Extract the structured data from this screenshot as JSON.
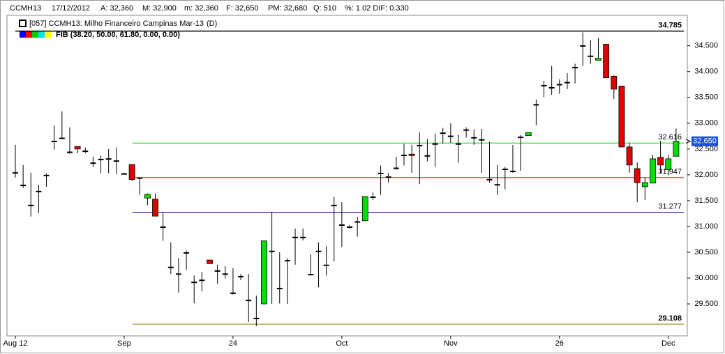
{
  "chart_data": {
    "type": "candlestick",
    "header": [
      "CCMH13",
      "17/12/2012",
      "A: 32,360",
      "M: 32,900",
      "m: 32,360",
      "F: 32,650",
      "PM: 32,680",
      "Q: 510",
      "%: 1.02 DIF: 0.330"
    ],
    "legend": [
      {
        "name": "[057] CCMH13: Milho Financeiro Campinas Mar-13",
        "period": "(D)"
      },
      {
        "name": "FIB (38.20, 50.00, 61.80, 0.00, 0.00)"
      }
    ],
    "open": [
      32.05,
      31.81,
      31.42,
      31.69,
      32.0,
      32.66,
      32.72,
      32.45,
      32.55,
      32.47,
      32.24,
      32.31,
      32.32,
      32.28,
      32.03,
      32.2,
      31.95,
      31.55,
      31.53,
      31.0,
      30.22,
      30.09,
      30.5,
      29.93,
      29.97,
      30.35,
      30.15,
      30.09,
      29.72,
      30.04,
      29.58,
      29.23,
      29.5,
      30.53,
      29.81,
      30.35,
      30.8,
      30.8,
      30.08,
      30.53,
      30.26,
      31.42,
      31.04,
      31.0,
      31.1,
      31.11,
      31.58,
      32.04,
      31.97,
      32.14,
      32.39,
      32.4,
      32.58,
      32.38,
      32.61,
      32.82,
      32.76,
      32.61,
      32.88,
      32.73,
      32.69,
      31.92,
      31.82,
      32.12,
      32.08,
      32.74,
      32.76,
      33.37,
      33.74,
      33.7,
      33.76,
      33.8,
      34.09,
      34.51,
      34.31,
      34.22,
      34.53,
      33.91,
      33.72,
      32.54,
      32.12,
      31.77,
      31.84,
      32.34,
      32.1,
      32.36
    ],
    "high": [
      32.58,
      32.19,
      32.04,
      31.81,
      32.03,
      32.96,
      33.23,
      32.92,
      32.55,
      32.53,
      32.35,
      32.37,
      32.5,
      32.53,
      32.04,
      32.2,
      31.95,
      31.64,
      31.64,
      31.26,
      30.69,
      30.39,
      30.53,
      30.05,
      30.12,
      30.35,
      30.26,
      30.23,
      30.19,
      30.08,
      30.08,
      29.66,
      30.72,
      31.27,
      30.5,
      30.39,
      30.96,
      30.96,
      30.46,
      30.69,
      30.62,
      31.58,
      31.47,
      31.03,
      31.18,
      31.58,
      31.66,
      32.18,
      32.04,
      32.35,
      32.6,
      32.58,
      32.82,
      32.69,
      32.8,
      32.91,
      33.0,
      32.78,
      32.92,
      32.88,
      32.89,
      32.64,
      32.19,
      32.15,
      32.58,
      32.77,
      32.82,
      33.46,
      33.82,
      34.11,
      33.85,
      33.97,
      34.15,
      34.76,
      34.61,
      34.65,
      34.53,
      33.93,
      33.72,
      32.62,
      32.24,
      31.95,
      32.39,
      32.66,
      32.39,
      32.9
    ],
    "low": [
      31.95,
      31.74,
      31.19,
      31.26,
      31.77,
      32.49,
      32.72,
      32.41,
      32.42,
      32.42,
      32.15,
      32.03,
      32.03,
      32.01,
      32.01,
      31.88,
      31.61,
      31.41,
      31.2,
      30.72,
      30.08,
      29.72,
      30.16,
      29.51,
      29.74,
      30.28,
      29.89,
      29.99,
      29.68,
      29.96,
      29.15,
      29.07,
      29.5,
      29.5,
      29.51,
      29.5,
      30.26,
      30.73,
      30.05,
      29.82,
      30.05,
      30.32,
      30.6,
      30.96,
      30.8,
      31.11,
      31.51,
      31.61,
      31.85,
      32.1,
      32.18,
      32.04,
      31.82,
      32.26,
      32.15,
      32.61,
      32.62,
      32.23,
      32.72,
      32.58,
      32.04,
      31.85,
      31.61,
      31.72,
      32.04,
      32.08,
      32.76,
      32.96,
      33.5,
      33.55,
      33.57,
      33.66,
      33.77,
      34.11,
      34.15,
      34.22,
      33.88,
      33.47,
      32.53,
      32.04,
      31.47,
      31.51,
      31.84,
      32.04,
      31.99,
      32.36
    ],
    "close": [
      32.05,
      31.81,
      31.42,
      31.69,
      32.0,
      32.66,
      32.72,
      32.45,
      32.5,
      32.47,
      32.24,
      32.31,
      32.32,
      32.28,
      32.03,
      31.91,
      31.95,
      31.62,
      31.2,
      31.0,
      30.22,
      30.09,
      30.5,
      29.93,
      29.97,
      30.28,
      30.15,
      30.09,
      29.72,
      30.04,
      29.58,
      29.23,
      30.72,
      30.53,
      29.81,
      30.35,
      30.8,
      30.8,
      30.08,
      30.53,
      30.26,
      31.42,
      31.04,
      31.0,
      31.1,
      31.58,
      31.58,
      32.04,
      31.97,
      32.14,
      32.39,
      32.39,
      32.58,
      32.38,
      32.61,
      32.82,
      32.76,
      32.61,
      32.88,
      32.73,
      32.69,
      31.92,
      31.82,
      32.12,
      32.08,
      32.74,
      32.82,
      33.37,
      33.74,
      33.7,
      33.76,
      33.8,
      34.09,
      34.51,
      34.31,
      34.26,
      33.88,
      33.66,
      32.54,
      32.19,
      31.85,
      31.85,
      32.31,
      32.19,
      32.31,
      32.65
    ],
    "up_color": "#00e000",
    "down_color": "#e00000",
    "flat_color": "#000000",
    "fib_levels": [
      {
        "value": 34.785,
        "color": "#000000"
      },
      {
        "value": 32.616,
        "color": "#00cc00"
      },
      {
        "value": 31.947,
        "color": "#cc0000"
      },
      {
        "value": 31.277,
        "color": "#000080"
      },
      {
        "value": 29.108,
        "color": "#808000"
      }
    ],
    "last_price": {
      "value": 32.65,
      "label": "32.650"
    },
    "ylim": [
      28.88,
      35.09
    ],
    "yticks": [
      {
        "value": 29.5,
        "label": "29.500"
      },
      {
        "value": 30,
        "label": "30.000"
      },
      {
        "value": 30.5,
        "label": "30.500"
      },
      {
        "value": 31,
        "label": "31.000"
      },
      {
        "value": 31.5,
        "label": "31.500"
      },
      {
        "value": 32,
        "label": "32.000"
      },
      {
        "value": 32.5,
        "label": "32.500"
      },
      {
        "value": 33,
        "label": "33.000"
      },
      {
        "value": 33.5,
        "label": "33.500"
      },
      {
        "value": 34,
        "label": "34.000"
      },
      {
        "value": 34.5,
        "label": "34.500"
      }
    ],
    "xticks": [
      {
        "value": 0,
        "label": "Aug 12"
      },
      {
        "value": 14,
        "label": "Sep"
      },
      {
        "value": 28,
        "label": "24"
      },
      {
        "value": 42,
        "label": "Oct"
      },
      {
        "value": 56,
        "label": "Nov"
      },
      {
        "value": 70,
        "label": "26"
      },
      {
        "value": 84,
        "label": "Dec"
      }
    ],
    "grid": true
  }
}
